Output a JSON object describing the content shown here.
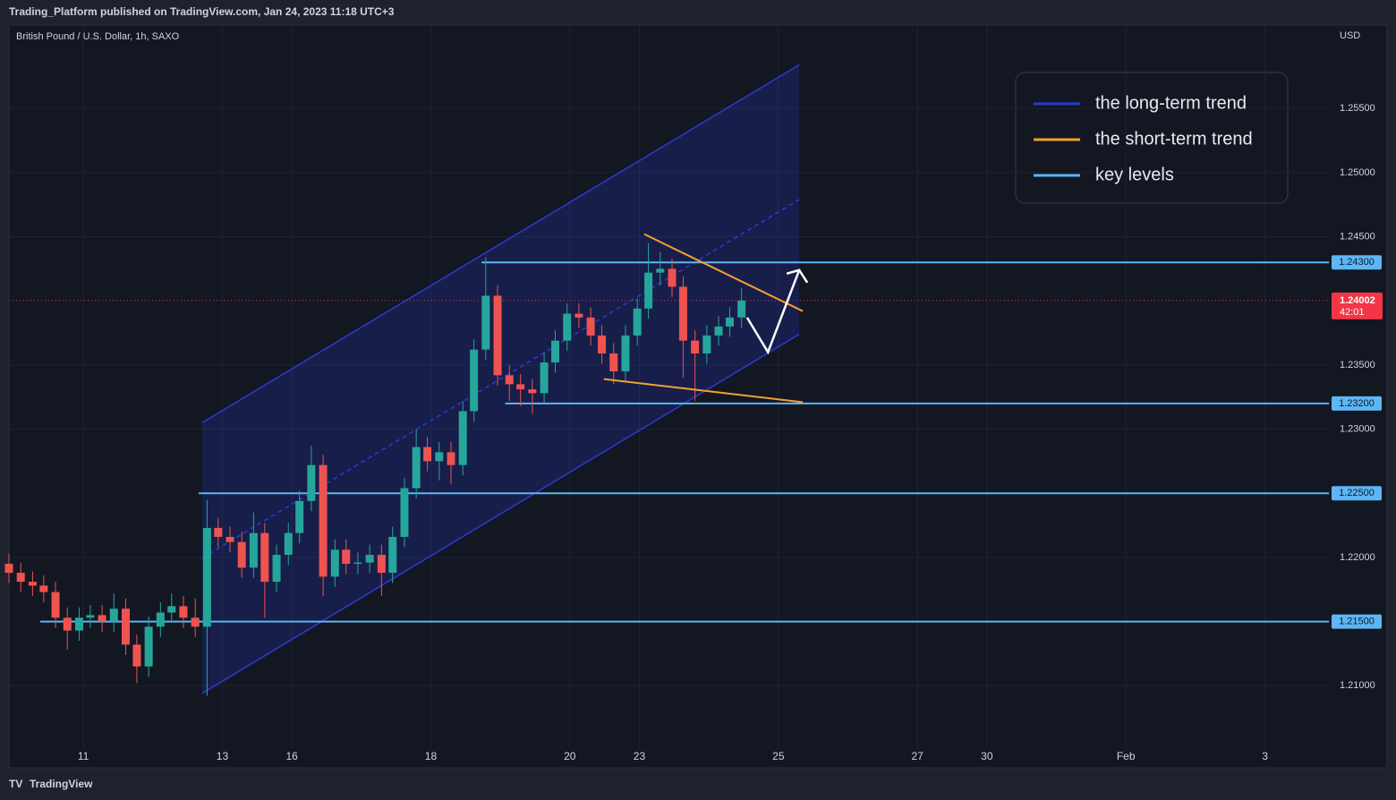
{
  "header": {
    "publisher": "Trading_Platform published on TradingView.com, Jan 24, 2023 11:18 UTC+3",
    "footer": "TradingView"
  },
  "chart_data": {
    "type": "candlestick",
    "title": "British Pound / U.S. Dollar, 1h, SAXO",
    "currency": "USD",
    "up_color": "#26a69a",
    "down_color": "#ef5350",
    "x": [
      -1.07,
      -0.9,
      -0.73,
      -0.57,
      -0.4,
      -0.23,
      -0.06,
      0.1,
      0.27,
      0.44,
      0.61,
      0.77,
      0.94,
      1.11,
      1.27,
      1.44,
      1.61,
      1.78,
      1.94,
      2.11,
      2.28,
      2.45,
      2.61,
      2.78,
      2.95,
      3.11,
      3.28,
      3.45,
      3.62,
      3.78,
      3.95,
      4.12,
      4.29,
      4.45,
      4.62,
      4.79,
      4.95,
      5.12,
      5.29,
      5.46,
      5.62,
      5.79,
      5.96,
      6.13,
      6.29,
      6.46,
      6.63,
      6.79,
      6.96,
      7.13,
      7.3,
      7.46,
      7.63,
      7.8,
      7.97,
      8.13,
      8.3,
      8.47,
      8.63,
      8.8,
      8.97,
      9.14,
      9.3,
      9.47
    ],
    "open": [
      1.2195,
      1.2188,
      1.2181,
      1.2178,
      1.2173,
      1.2153,
      1.2143,
      1.2153,
      1.2155,
      1.215,
      1.216,
      1.2132,
      1.2115,
      1.2146,
      1.2157,
      1.2162,
      1.2153,
      1.2146,
      1.2223,
      1.2216,
      1.2212,
      1.2192,
      1.2219,
      1.2181,
      1.2202,
      1.2219,
      1.2244,
      1.2272,
      1.2185,
      1.2206,
      1.2195,
      1.2196,
      1.2202,
      1.2188,
      1.2216,
      1.2254,
      1.2286,
      1.2275,
      1.2282,
      1.2272,
      1.2314,
      1.2362,
      1.2404,
      1.2342,
      1.2335,
      1.2331,
      1.2328,
      1.2352,
      1.2369,
      1.239,
      1.2387,
      1.2373,
      1.2359,
      1.2345,
      1.2373,
      1.2394,
      1.2422,
      1.2425,
      1.2411,
      1.2369,
      1.2359,
      1.2373,
      1.238,
      1.2387
    ],
    "high": [
      1.2203,
      1.2196,
      1.2189,
      1.2186,
      1.2181,
      1.2161,
      1.2161,
      1.2163,
      1.2163,
      1.2172,
      1.2168,
      1.214,
      1.2154,
      1.2165,
      1.2172,
      1.217,
      1.2168,
      1.2245,
      1.2231,
      1.2224,
      1.222,
      1.2235,
      1.2227,
      1.221,
      1.2227,
      1.2252,
      1.2287,
      1.228,
      1.2214,
      1.2214,
      1.2204,
      1.221,
      1.221,
      1.2224,
      1.2262,
      1.23,
      1.2294,
      1.229,
      1.229,
      1.2322,
      1.237,
      1.2434,
      1.2412,
      1.235,
      1.2343,
      1.2339,
      1.236,
      1.2377,
      1.2398,
      1.2398,
      1.2395,
      1.2381,
      1.2367,
      1.2381,
      1.2402,
      1.2445,
      1.2438,
      1.2433,
      1.2419,
      1.2377,
      1.2381,
      1.2388,
      1.2395,
      1.241
    ],
    "low": [
      1.218,
      1.2173,
      1.217,
      1.2165,
      1.2145,
      1.2128,
      1.2135,
      1.2145,
      1.2142,
      1.2142,
      1.2124,
      1.2102,
      1.2107,
      1.2138,
      1.2149,
      1.2145,
      1.2138,
      1.2092,
      1.2208,
      1.2204,
      1.2184,
      1.2184,
      1.2153,
      1.2173,
      1.2194,
      1.2211,
      1.2236,
      1.217,
      1.2177,
      1.2187,
      1.2187,
      1.2188,
      1.217,
      1.218,
      1.2208,
      1.2246,
      1.2267,
      1.226,
      1.2257,
      1.2264,
      1.2306,
      1.2354,
      1.2334,
      1.2322,
      1.2318,
      1.2312,
      1.232,
      1.2344,
      1.2361,
      1.2379,
      1.2365,
      1.2351,
      1.2335,
      1.2337,
      1.2365,
      1.2386,
      1.2412,
      1.2403,
      1.234,
      1.2322,
      1.2351,
      1.2365,
      1.2372,
      1.2379
    ],
    "close": [
      1.2188,
      1.2181,
      1.2178,
      1.2173,
      1.2153,
      1.2143,
      1.2153,
      1.2155,
      1.215,
      1.216,
      1.2132,
      1.2115,
      1.2146,
      1.2157,
      1.2162,
      1.2153,
      1.2146,
      1.2223,
      1.2216,
      1.2212,
      1.2192,
      1.2219,
      1.2181,
      1.2202,
      1.2219,
      1.2244,
      1.2272,
      1.2185,
      1.2206,
      1.2195,
      1.2196,
      1.2202,
      1.2188,
      1.2216,
      1.2254,
      1.2286,
      1.2275,
      1.2282,
      1.2272,
      1.2314,
      1.2362,
      1.2404,
      1.2342,
      1.2335,
      1.2331,
      1.2328,
      1.2352,
      1.2369,
      1.239,
      1.2387,
      1.2373,
      1.2359,
      1.2345,
      1.2373,
      1.2394,
      1.2422,
      1.2425,
      1.2411,
      1.2369,
      1.2359,
      1.2373,
      1.238,
      1.2387,
      1.24002
    ],
    "xlim": [
      -1.07,
      17.92
    ],
    "xticks": [
      {
        "value": 0,
        "label": "11"
      },
      {
        "value": 2,
        "label": "13"
      },
      {
        "value": 3,
        "label": "16"
      },
      {
        "value": 5,
        "label": "18"
      },
      {
        "value": 7,
        "label": "20"
      },
      {
        "value": 8,
        "label": "23"
      },
      {
        "value": 10,
        "label": "25"
      },
      {
        "value": 12,
        "label": "27"
      },
      {
        "value": 13,
        "label": "30"
      },
      {
        "value": 15,
        "label": "Feb"
      },
      {
        "value": 17,
        "label": "3"
      }
    ],
    "ylim": [
      1.2036,
      1.2615
    ],
    "yticks": [
      {
        "value": 1.21,
        "label": "1.21000"
      },
      {
        "value": 1.22,
        "label": "1.22000"
      },
      {
        "value": 1.23,
        "label": "1.23000"
      },
      {
        "value": 1.235,
        "label": "1.23500"
      },
      {
        "value": 1.245,
        "label": "1.24500"
      },
      {
        "value": 1.25,
        "label": "1.25000"
      },
      {
        "value": 1.255,
        "label": "1.25500"
      }
    ],
    "grid": true,
    "last_price": {
      "value": 1.24002,
      "label": "1.24002",
      "countdown": "42:01",
      "color": "#f23645"
    },
    "key_levels": {
      "name": "key levels",
      "color": "#5db6f5",
      "levels": [
        {
          "value": 1.243,
          "label": "1.24300",
          "x_start": 5.73
        },
        {
          "value": 1.232,
          "label": "1.23200",
          "x_start": 6.07
        },
        {
          "value": 1.225,
          "label": "1.22500",
          "x_start": 1.66
        },
        {
          "value": 1.215,
          "label": "1.21500",
          "x_start": -0.62
        }
      ]
    },
    "channel": {
      "name": "the long-term trend",
      "color": "#2a3ad6",
      "x": [
        1.71,
        10.3
      ],
      "upper": [
        1.2305,
        1.2584
      ],
      "middle": [
        1.21995,
        1.2479
      ],
      "lower": [
        1.2094,
        1.2374
      ]
    },
    "short_term": {
      "name": "the short-term trend",
      "color": "#f5a030",
      "lines": [
        {
          "x": [
            8.07,
            10.35
          ],
          "y": [
            1.2452,
            1.2392
          ]
        },
        {
          "x": [
            7.49,
            10.35
          ],
          "y": [
            1.2339,
            1.2321
          ]
        }
      ]
    },
    "projection": {
      "color": "#ffffff",
      "x": [
        9.55,
        9.85,
        10.3
      ],
      "y": [
        1.2387,
        1.236,
        1.2424
      ]
    }
  }
}
